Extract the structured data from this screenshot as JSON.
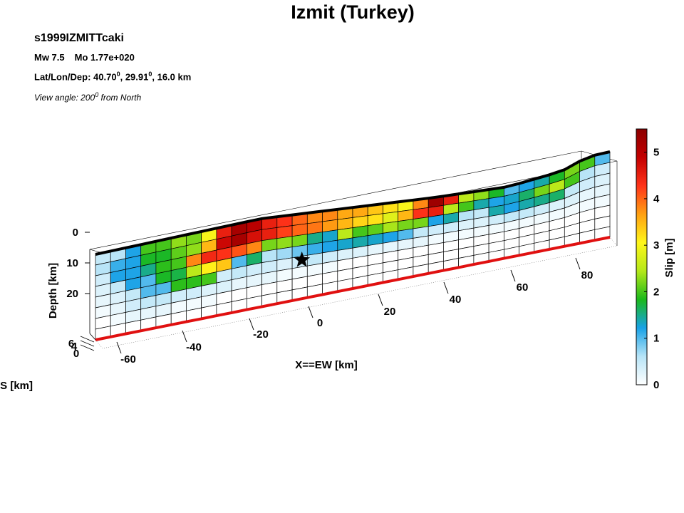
{
  "header": {
    "title": "Izmit (Turkey)",
    "event_id": "s1999IZMITTcaki",
    "mw_label": "Mw 7.5",
    "mo_label": "Mo 1.77e+020",
    "latlon_prefix": "Lat/Lon/Dep: 40.70",
    "deg_mark": "0",
    "latlon_mid": ", 29.91",
    "latlon_suffix": ", 16.0 km",
    "view_prefix": "View angle: 200",
    "view_suffix": " from North"
  },
  "chart_data": {
    "type": "heatmap",
    "title": "Izmit (Turkey)",
    "xlabel": "X==EW [km]",
    "ylabel": "Depth [km]",
    "zlabel_partial": "S [km]",
    "colorbar_label": "Slip [m]",
    "colorbar_ticks": [
      "0",
      "1",
      "2",
      "3",
      "4",
      "5"
    ],
    "colorbar_range": [
      0,
      5.5
    ],
    "x_tick_labels": [
      "-60",
      "-40",
      "-20",
      "0",
      "20",
      "40",
      "60",
      "80"
    ],
    "depth_tick_labels": [
      "0",
      "10",
      "20"
    ],
    "ns_tick_labels": [
      "6",
      "4",
      "0"
    ],
    "x_range_km": [
      -70,
      92
    ],
    "depth_range_km": [
      0,
      22
    ],
    "view_angle_deg": 200,
    "hypocenter": {
      "x_km": -5,
      "depth_km": 12
    },
    "colormap": [
      "#ffffff",
      "#b7e4f7",
      "#18a2e6",
      "#1bb91b",
      "#b4e81a",
      "#fff61a",
      "#ffa012",
      "#ff3319",
      "#c30000",
      "#8c0000"
    ],
    "slip_grid_m": [
      [
        0.5,
        0.6,
        1.2,
        2.0,
        2.0,
        2.3,
        2.2,
        3.0,
        4.5,
        5.2,
        5.0,
        4.5,
        4.3,
        4.0,
        3.8,
        3.8,
        3.6,
        3.6,
        3.4,
        3.2,
        3.0,
        3.8,
        5.3,
        4.5,
        2.5,
        2.3,
        1.8,
        1.0,
        1.2,
        1.4,
        1.8,
        2.2,
        2.0,
        1.0
      ],
      [
        0.6,
        1.1,
        1.2,
        1.8,
        1.8,
        2.1,
        2.3,
        3.5,
        4.8,
        5.2,
        4.7,
        4.5,
        4.2,
        4.0,
        3.9,
        3.7,
        3.5,
        3.3,
        3.2,
        2.8,
        3.5,
        4.3,
        4.5,
        2.5,
        2.0,
        1.4,
        1.2,
        1.3,
        1.6,
        2.2,
        2.5,
        2.0,
        0.6,
        0.4
      ],
      [
        0.4,
        1.2,
        1.2,
        1.5,
        1.9,
        2.0,
        3.8,
        4.4,
        4.3,
        4.1,
        3.8,
        2.2,
        2.3,
        2.2,
        1.5,
        1.3,
        2.5,
        2.0,
        2.1,
        2.4,
        2.2,
        2.2,
        1.2,
        1.4,
        0.6,
        0.5,
        1.4,
        1.2,
        1.4,
        1.5,
        1.6,
        0.5,
        0.4,
        0.3
      ],
      [
        0.3,
        0.5,
        1.2,
        1.0,
        1.8,
        1.7,
        2.5,
        3.1,
        3.4,
        1.0,
        1.6,
        0.6,
        0.7,
        0.9,
        1.1,
        1.2,
        1.3,
        1.4,
        1.3,
        1.2,
        1.0,
        0.5,
        0.4,
        0.4,
        0.3,
        0.3,
        0.4,
        0.5,
        0.5,
        0.4,
        0.3,
        0.3,
        0.2,
        0.2
      ],
      [
        0.2,
        0.3,
        0.5,
        1.0,
        1.0,
        1.9,
        1.9,
        2.0,
        0.4,
        0.5,
        0.4,
        0.4,
        0.3,
        0.4,
        0.5,
        0.4,
        0.3,
        0.3,
        0.2,
        0.2,
        0.2,
        0.2,
        0.1,
        0.1,
        0.1,
        0.1,
        0.1,
        0.1,
        0.1,
        0.1,
        0.1,
        0.1,
        0.1,
        0.1
      ],
      [
        0.1,
        0.2,
        0.4,
        0.5,
        0.5,
        0.4,
        0.4,
        0.3,
        0.3,
        0.2,
        0.2,
        0.2,
        0.1,
        0.1,
        0.1,
        0.1,
        0.0,
        0.0,
        0.0,
        0.0,
        0.0,
        0.0,
        0.0,
        0.0,
        0.0,
        0.0,
        0.0,
        0.0,
        0.0,
        0.0,
        0.0,
        0.0,
        0.0,
        0.0
      ],
      [
        0.0,
        0.1,
        0.2,
        0.2,
        0.2,
        0.1,
        0.1,
        0.1,
        0.0,
        0.0,
        0.0,
        0.0,
        0.0,
        0.0,
        0.0,
        0.0,
        0.0,
        0.0,
        0.0,
        0.0,
        0.0,
        0.0,
        0.0,
        0.0,
        0.0,
        0.0,
        0.0,
        0.0,
        0.0,
        0.0,
        0.0,
        0.0,
        0.0,
        0.0
      ],
      [
        0.0,
        0.0,
        0.0,
        0.0,
        0.0,
        0.0,
        0.0,
        0.0,
        0.0,
        0.0,
        0.0,
        0.0,
        0.0,
        0.0,
        0.0,
        0.0,
        0.0,
        0.0,
        0.0,
        0.0,
        0.0,
        0.0,
        0.0,
        0.0,
        0.0,
        0.0,
        0.0,
        0.0,
        0.0,
        0.0,
        0.0,
        0.0,
        0.0,
        0.0
      ]
    ]
  }
}
